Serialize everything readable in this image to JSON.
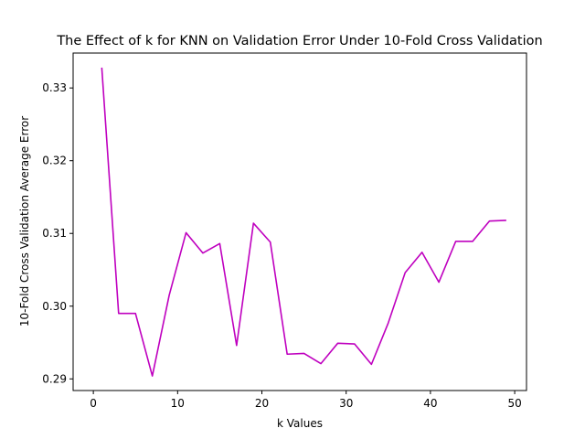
{
  "chart_data": {
    "type": "line",
    "title": "The Effect of k for KNN on Validation Error Under 10-Fold Cross Validation",
    "xlabel": "k Values",
    "ylabel": "10-Fold Cross Validation Average Error",
    "xlim": [
      -2.4,
      51.4
    ],
    "ylim": [
      0.2884,
      0.3348
    ],
    "xticks": [
      0,
      10,
      20,
      30,
      40,
      50
    ],
    "yticks": [
      0.29,
      0.3,
      0.31,
      0.32,
      0.33
    ],
    "ytick_labels": [
      "0.29",
      "0.30",
      "0.31",
      "0.32",
      "0.33"
    ],
    "grid": false,
    "series": [
      {
        "color": "#bf00bf",
        "x": [
          1,
          3,
          5,
          7,
          9,
          11,
          13,
          15,
          17,
          19,
          21,
          23,
          25,
          27,
          29,
          31,
          33,
          35,
          37,
          39,
          41,
          43,
          45,
          47,
          49
        ],
        "y": [
          0.3328,
          0.299,
          0.299,
          0.2904,
          0.3015,
          0.3101,
          0.3073,
          0.3086,
          0.2946,
          0.3114,
          0.3088,
          0.2934,
          0.2935,
          0.2921,
          0.2949,
          0.2948,
          0.292,
          0.2977,
          0.3046,
          0.3074,
          0.3033,
          0.3089,
          0.3089,
          0.3117,
          0.3118
        ]
      }
    ]
  }
}
